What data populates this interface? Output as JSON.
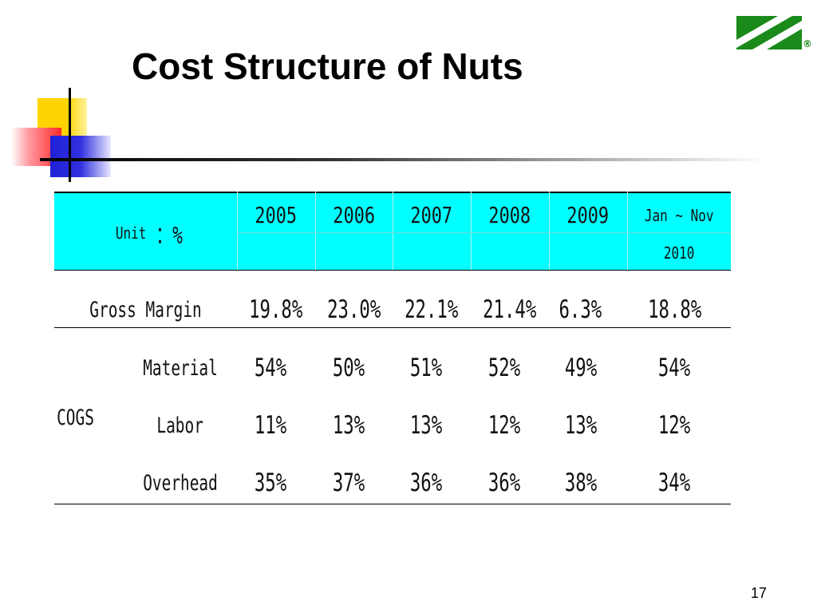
{
  "title": "Cost Structure of Nuts",
  "page_number": "17",
  "colors": {
    "header_bg": "#00ffff",
    "logo_green": "#1a8a1a"
  },
  "logo": {
    "icon": "stripe-logo-icon",
    "mark": "®"
  },
  "table": {
    "unit_prefix": "Unit",
    "unit_symbol": "：%",
    "columns": [
      "2005",
      "2006",
      "2007",
      "2008",
      "2009"
    ],
    "last_column_line1": "Jan ~ Nov",
    "last_column_line2": "2010",
    "gross_margin": {
      "label": "Gross Margin",
      "values": [
        "19.8%",
        "23.0%",
        "22.1%",
        "21.4%",
        "6.3%",
        "18.8%"
      ]
    },
    "cogs_label": "COGS",
    "cogs_rows": [
      {
        "label": "Material",
        "values": [
          "54%",
          "50%",
          "51%",
          "52%",
          "49%",
          "54%"
        ]
      },
      {
        "label": "Labor",
        "values": [
          "11%",
          "13%",
          "13%",
          "12%",
          "13%",
          "12%"
        ]
      },
      {
        "label": "Overhead",
        "values": [
          "35%",
          "37%",
          "36%",
          "36%",
          "38%",
          "34%"
        ]
      }
    ]
  }
}
